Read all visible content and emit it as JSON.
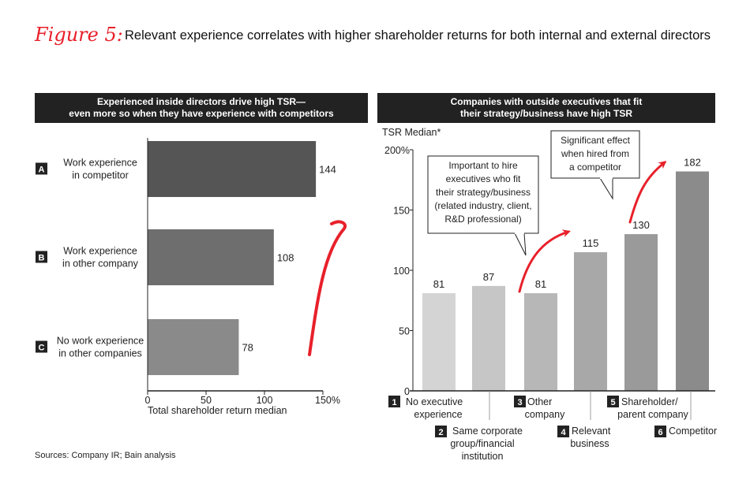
{
  "figure_label": "Figure 5:",
  "title": "Relevant experience correlates with higher shareholder returns for both internal and external directors",
  "sources": "Sources: Company IR; Bain analysis",
  "colors": {
    "accent": "#e8202a",
    "header_bg": "#222222"
  },
  "chart_data": [
    {
      "type": "bar",
      "orientation": "horizontal",
      "title": [
        "Experienced inside directors drive high TSR—",
        "even more so when they have experience with competitors"
      ],
      "xlabel": "Total shareholder return median",
      "xlim": [
        0,
        150
      ],
      "xticks": [
        "0",
        "50",
        "100",
        "150%"
      ],
      "categories": [
        {
          "letter": "A",
          "label": [
            "Work experience",
            "in competitor"
          ]
        },
        {
          "letter": "B",
          "label": [
            "Work experience",
            "in other company"
          ]
        },
        {
          "letter": "C",
          "label": [
            "No work experience",
            "in other companies"
          ]
        }
      ],
      "values": [
        144,
        108,
        78
      ],
      "data_labels": [
        "144",
        "108",
        "78"
      ],
      "colors": [
        "#555555",
        "#6e6e6e",
        "#8a8a8a"
      ]
    },
    {
      "type": "bar",
      "title": [
        "Companies with outside executives that fit",
        "their strategy/business have high TSR"
      ],
      "ylabel": "TSR Median*",
      "ylim": [
        0,
        200
      ],
      "yticks": [
        "0",
        "50",
        "100",
        "150",
        "200%"
      ],
      "categories": [
        {
          "num": "1",
          "label": [
            "No executive",
            "experience"
          ]
        },
        {
          "num": "2",
          "label": [
            "Same corporate",
            "group/financial",
            "institution"
          ]
        },
        {
          "num": "3",
          "label": [
            "Other",
            "company"
          ]
        },
        {
          "num": "4",
          "label": [
            "Relevant",
            "business"
          ]
        },
        {
          "num": "5",
          "label": [
            "Shareholder/",
            "parent company"
          ]
        },
        {
          "num": "6",
          "label": [
            "Competitor"
          ]
        }
      ],
      "values": [
        81,
        87,
        81,
        115,
        130,
        182
      ],
      "data_labels": [
        "81",
        "87",
        "81",
        "115",
        "130",
        "182"
      ],
      "colors": [
        "#d4d4d4",
        "#c6c6c6",
        "#b7b7b7",
        "#a8a8a8",
        "#9a9a9a",
        "#8b8b8b"
      ],
      "annotations": [
        [
          "Important to hire",
          "executives who fit",
          "their strategy/business",
          "(related industry, client,",
          "R&D professional)"
        ],
        [
          "Significant effect",
          "when hired from",
          "a competitor"
        ]
      ]
    }
  ]
}
